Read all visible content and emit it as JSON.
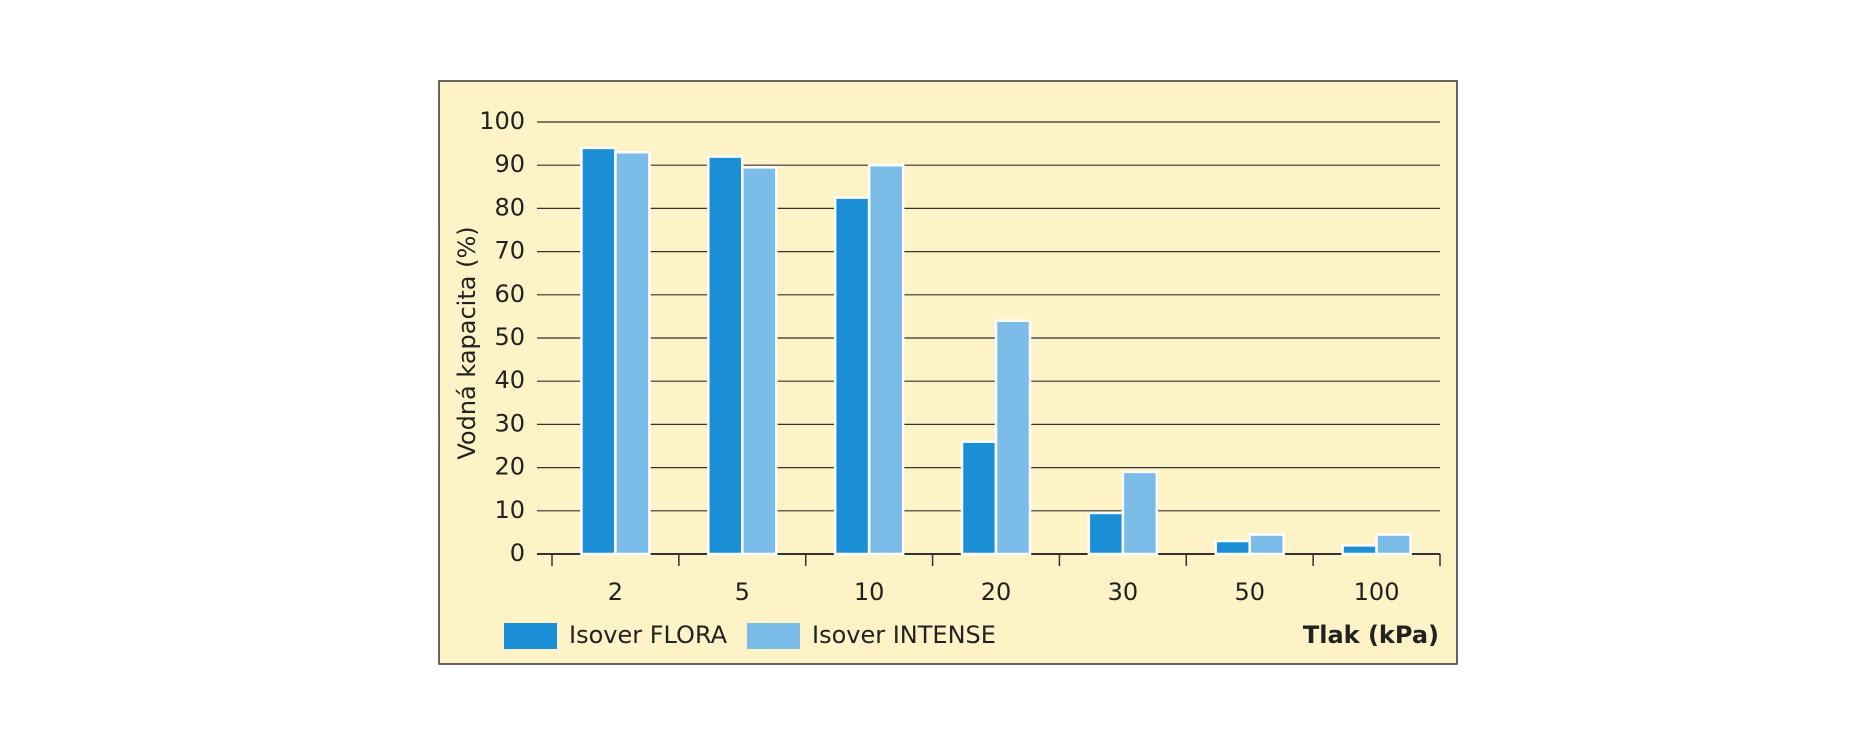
{
  "chart_data": {
    "type": "bar",
    "y_label": "Vodná kapacita (%)",
    "x_label": "Tlak (kPa)",
    "categories": [
      "2",
      "5",
      "10",
      "20",
      "30",
      "50",
      "100"
    ],
    "series": [
      {
        "name": "Isover FLORA",
        "color": "#1a8fd6",
        "values": [
          94,
          92,
          82.5,
          26,
          9.5,
          3,
          2
        ]
      },
      {
        "name": "Isover INTENSE",
        "color": "#7bbde8",
        "values": [
          93,
          89.5,
          90,
          54,
          19,
          4.5,
          4.5
        ]
      }
    ],
    "ylim": [
      0,
      100
    ],
    "yticks": [
      0,
      10,
      20,
      30,
      40,
      50,
      60,
      70,
      80,
      90,
      100
    ],
    "grid": true
  }
}
